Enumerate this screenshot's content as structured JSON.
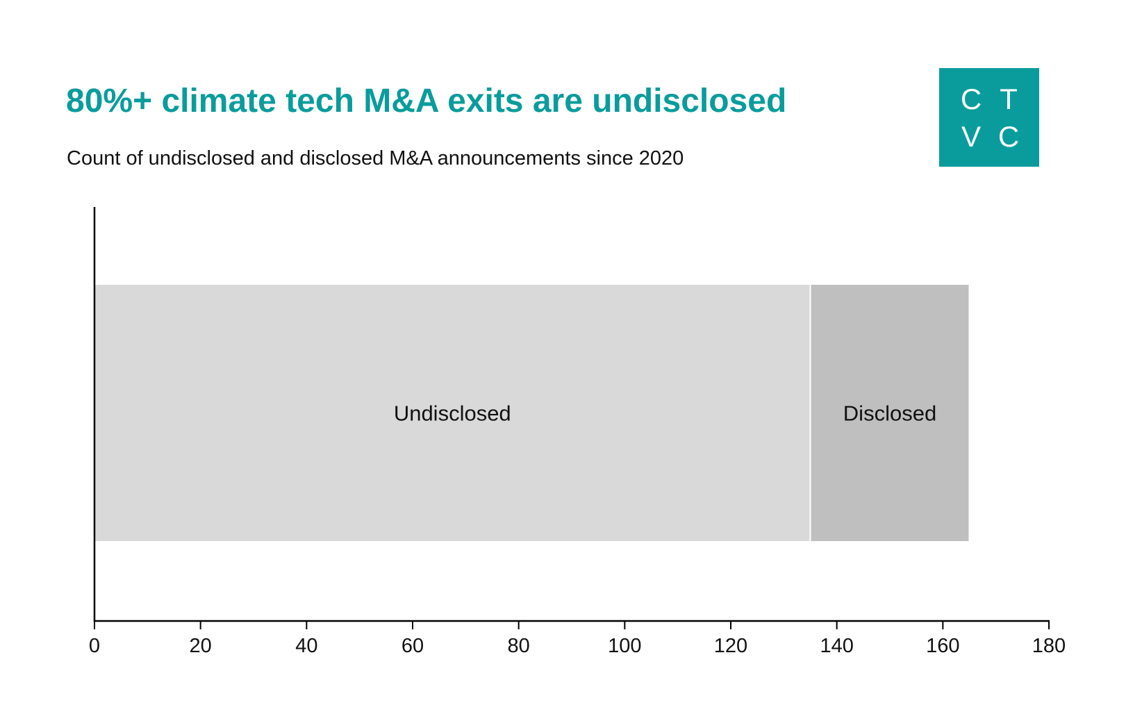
{
  "header": {
    "title": "80%+ climate tech M&A exits are undisclosed",
    "subtitle": "Count of undisclosed and disclosed M&A announcements since 2020"
  },
  "logo": {
    "letters": [
      "C",
      "T",
      "V",
      "C"
    ],
    "background": "#0a9c9c"
  },
  "chart_data": {
    "type": "bar",
    "orientation": "horizontal",
    "stacked": true,
    "title": "80%+ climate tech M&A exits are undisclosed",
    "subtitle": "Count of undisclosed and disclosed M&A announcements since 2020",
    "xlabel": "",
    "ylabel": "",
    "xlim": [
      0,
      180
    ],
    "x_ticks": [
      0,
      20,
      40,
      60,
      80,
      100,
      120,
      140,
      160,
      180
    ],
    "grid": false,
    "legend": "none",
    "categories": [
      ""
    ],
    "series": [
      {
        "name": "Undisclosed",
        "values": [
          135
        ],
        "color": "#d9d9d9"
      },
      {
        "name": "Disclosed",
        "values": [
          30
        ],
        "color": "#bfbfbf"
      }
    ]
  }
}
